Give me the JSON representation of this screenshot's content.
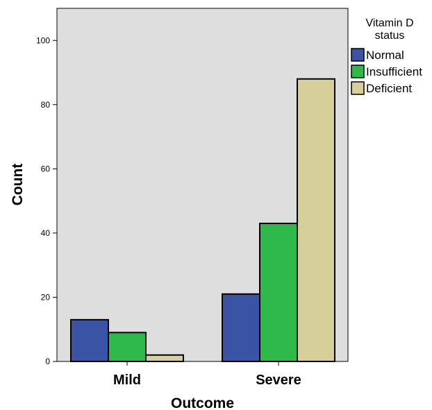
{
  "chart_data": {
    "type": "bar",
    "categories": [
      "Mild",
      "Severe"
    ],
    "series": [
      {
        "name": "Normal",
        "values": [
          13,
          21
        ],
        "color": "#3b53a5"
      },
      {
        "name": "Insufficient",
        "values": [
          9,
          43
        ],
        "color": "#2fb94a"
      },
      {
        "name": "Deficient",
        "values": [
          2,
          88
        ],
        "color": "#d6cf9a"
      }
    ],
    "xlabel": "Outcome",
    "ylabel": "Count",
    "ylim": [
      0,
      110
    ],
    "yticks": [
      0,
      20,
      40,
      60,
      80,
      100
    ],
    "grid": false,
    "legend": {
      "title_lines": [
        "Vitamin D",
        "status"
      ],
      "position": "right"
    },
    "plot_background": "#dedede"
  }
}
